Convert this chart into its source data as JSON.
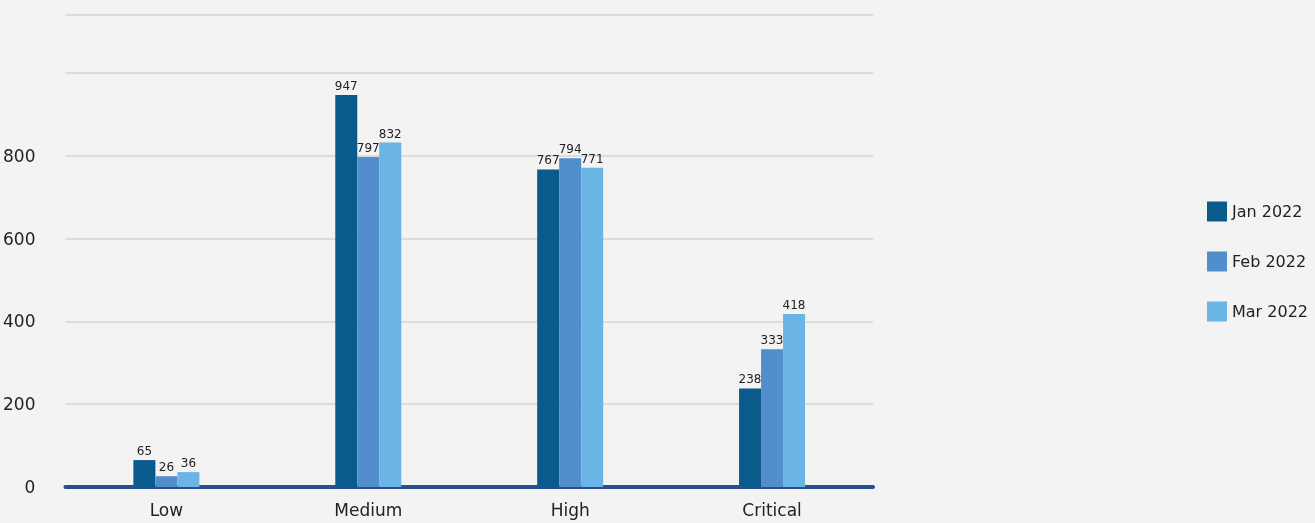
{
  "chart_data": {
    "type": "bar",
    "categories": [
      "Low",
      "Medium",
      "High",
      "Critical"
    ],
    "series": [
      {
        "name": "Jan 2022",
        "color": "#0b5a8c",
        "values": [
          65,
          947,
          767,
          238
        ]
      },
      {
        "name": "Feb 2022",
        "color": "#528dcc",
        "values": [
          26,
          797,
          794,
          333
        ]
      },
      {
        "name": "Mar 2022",
        "color": "#6ab4e6",
        "values": [
          36,
          832,
          771,
          418
        ]
      }
    ],
    "ylim": [
      0,
      1140
    ],
    "yticks": [
      0,
      200,
      400,
      600,
      800
    ],
    "grid": "y",
    "legend": "right",
    "data_labels": true
  }
}
